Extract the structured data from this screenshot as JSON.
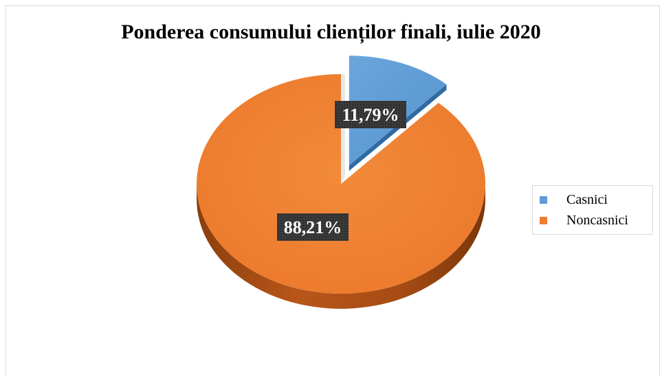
{
  "chart_data": {
    "type": "pie",
    "title": "Ponderea consumului clienților finali, iulie 2020",
    "slices": [
      {
        "name": "Casnici",
        "value": 11.79,
        "label": "11,79%",
        "color": "#5b9bd5"
      },
      {
        "name": "Noncasnici",
        "value": 88.21,
        "label": "88,21%",
        "color": "#ed7d31"
      }
    ],
    "legend_placement": "right",
    "style": "3d-exploded"
  }
}
